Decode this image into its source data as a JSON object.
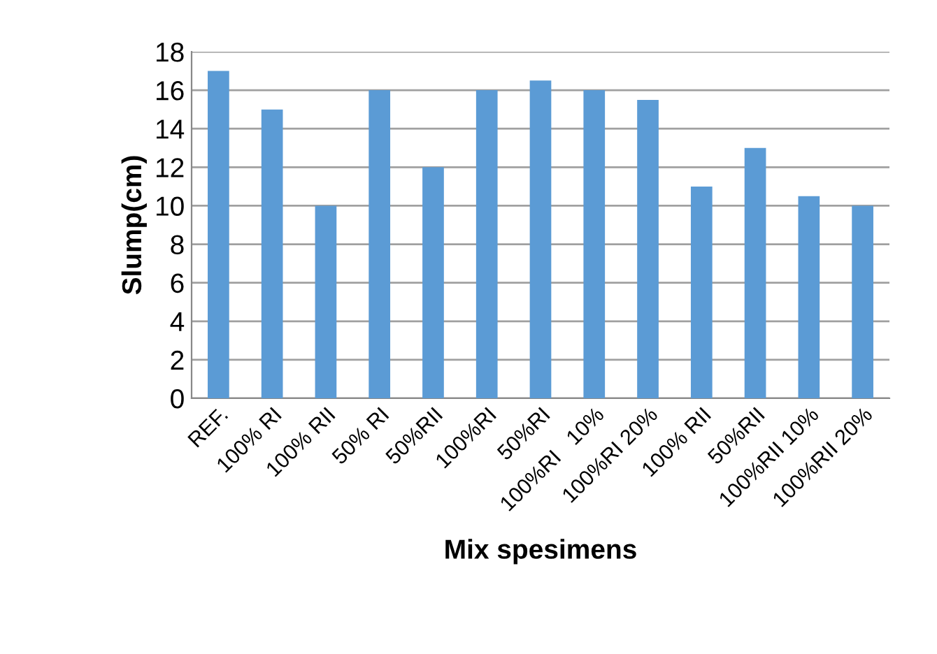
{
  "chart_data": {
    "type": "bar",
    "xlabel": "Mix spesimens",
    "ylabel": "Slump(cm)",
    "categories": [
      "REF.",
      "100% RI",
      "100% RII",
      "50% RI",
      "50%RII",
      "100%RI",
      "50%RI",
      "100%RI   10%",
      "100%RI 20%",
      "100% RII",
      "50%RII",
      "100%RII 10%",
      "100%RII 20%"
    ],
    "values": [
      17,
      15,
      10,
      16,
      12,
      16,
      16.5,
      16,
      15.5,
      11,
      13,
      10.5,
      10
    ],
    "color": "#5b9bd5",
    "ylim": [
      0,
      18
    ],
    "yticks": [
      0,
      2,
      4,
      6,
      8,
      10,
      12,
      14,
      16,
      18
    ],
    "grid": "y"
  }
}
